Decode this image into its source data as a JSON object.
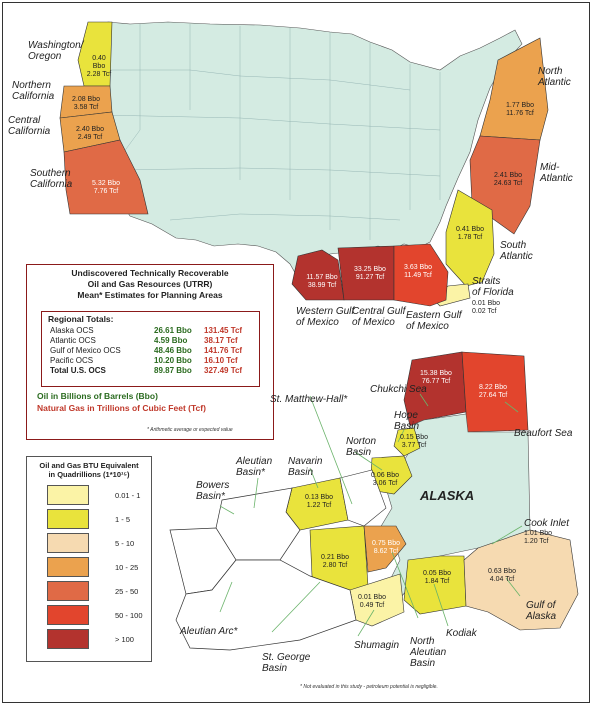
{
  "colors": {
    "land": "#d4ebe2",
    "scale": [
      "#fbf3a6",
      "#e9e33c",
      "#f6dab1",
      "#eba24e",
      "#e06a46",
      "#e2452d",
      "#b3332e"
    ]
  },
  "conus_regions": [
    {
      "name": "Washington/\nOregon",
      "oil": "0.40 Bbo",
      "gas": "2.28 Tcf"
    },
    {
      "name": "Northern\nCalifornia",
      "oil": "2.08 Bbo",
      "gas": "3.58 Tcf"
    },
    {
      "name": "Central\nCalifornia",
      "oil": "2.40 Bbo",
      "gas": "2.49 Tcf"
    },
    {
      "name": "Southern\nCalifornia",
      "oil": "5.32 Bbo",
      "gas": "7.76 Tcf"
    },
    {
      "name": "North\nAtlantic",
      "oil": "1.77 Bbo",
      "gas": "11.76 Tcf"
    },
    {
      "name": "Mid-\nAtlantic",
      "oil": "2.41 Bbo",
      "gas": "24.63 Tcf"
    },
    {
      "name": "South\nAtlantic",
      "oil": "0.41 Bbo",
      "gas": "1.78 Tcf"
    },
    {
      "name": "Straits\nof Florida",
      "oil": "0.01 Bbo",
      "gas": "0.02 Tcf"
    },
    {
      "name": "Western Gulf\nof Mexico",
      "oil": "11.57 Bbo",
      "gas": "38.99 Tcf"
    },
    {
      "name": "Central Gulf\nof Mexico",
      "oil": "33.25 Bbo",
      "gas": "91.27 Tcf"
    },
    {
      "name": "Eastern Gulf\nof Mexico",
      "oil": "3.63 Bbo",
      "gas": "11.49 Tcf"
    }
  ],
  "alaska_label": "ALASKA",
  "alaska_regions": [
    {
      "name": "Chukchi Sea",
      "oil": "15.38 Bbo",
      "gas": "76.77 Tcf"
    },
    {
      "name": "Beaufort Sea",
      "oil": "8.22 Bbo",
      "gas": "27.64 Tcf"
    },
    {
      "name": "Hope\nBasin",
      "oil": "0.15 Bbo",
      "gas": "3.77 Tcf"
    },
    {
      "name": "Norton\nBasin",
      "oil": "0.06 Bbo",
      "gas": "3.06 Tcf"
    },
    {
      "name": "Navarin\nBasin",
      "oil": "0.13 Bbo",
      "gas": "1.22 Tcf"
    },
    {
      "name": "St. George\nBasin",
      "oil": "0.21 Bbo",
      "gas": "2.80 Tcf"
    },
    {
      "name": "North\nAleutian\nBasin",
      "oil": "0.75 Bbo",
      "gas": "8.62 Tcf"
    },
    {
      "name": "Shumagin",
      "oil": "0.01 Bbo",
      "gas": "0.49 Tcf"
    },
    {
      "name": "Kodiak",
      "oil": "0.05 Bbo",
      "gas": "1.84 Tcf"
    },
    {
      "name": "Cook Inlet",
      "oil": "1.01 Bbo",
      "gas": "1.20 Tcf"
    },
    {
      "name": "Gulf of\nAlaska",
      "oil": "0.63 Bbo",
      "gas": "4.04 Tcf"
    }
  ],
  "alaska_unlabeled": [
    "St. Matthew-Hall*",
    "Aleutian\nBasin*",
    "Bowers\nBasin*",
    "Aleutian Arc*"
  ],
  "utrr_box": {
    "title": "Undiscovered Technically Recoverable\nOil and Gas Resources (UTRR)\nMean* Estimates for Planning Areas",
    "totals_heading": "Regional Totals:",
    "rows": [
      {
        "area": "Alaska OCS",
        "oil": "26.61 Bbo",
        "gas": "131.45 Tcf"
      },
      {
        "area": "Atlantic OCS",
        "oil": "4.59 Bbo",
        "gas": "38.17 Tcf"
      },
      {
        "area": "Gulf of Mexico OCS",
        "oil": "48.46 Bbo",
        "gas": "141.76 Tcf"
      },
      {
        "area": "Pacific OCS",
        "oil": "10.20 Bbo",
        "gas": "16.10 Tcf"
      },
      {
        "area": "Total U.S. OCS",
        "oil": "89.87 Bbo",
        "gas": "327.49 Tcf"
      }
    ],
    "oil_legend": "Oil in Billions of Barrels (Bbo)",
    "gas_legend": "Natural Gas in Trillions of Cubic Feet (Tcf)",
    "footnote": "* Arithmetic average or expected value"
  },
  "btu_legend": {
    "title": "Oil and Gas BTU Equivalent\nin Quadrillions (1*10¹⁵)",
    "items": [
      "0.01 - 1",
      "1 - 5",
      "5 - 10",
      "10 - 25",
      "25 - 50",
      "50 - 100",
      "> 100"
    ]
  },
  "bottom_footnote": "* Not evaluated in this study - petroleum potential is negligible."
}
